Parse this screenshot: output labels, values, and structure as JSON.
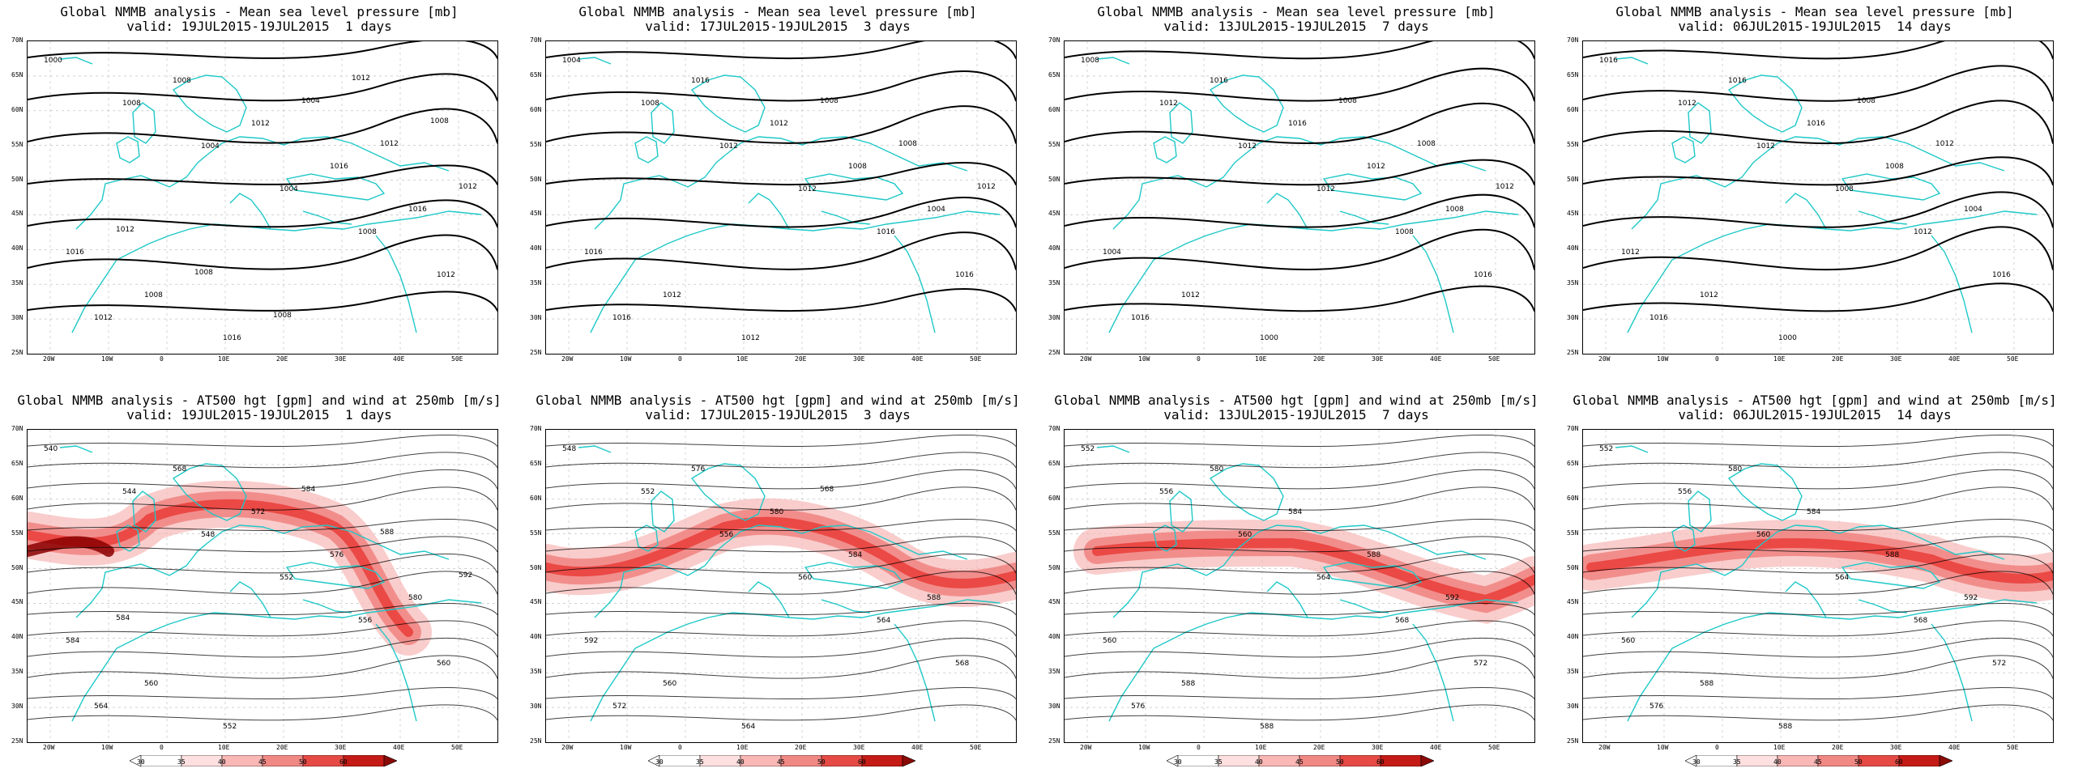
{
  "colors": {
    "coast": "#1fc8c8",
    "contour": "#000000",
    "jet": "#e8312e",
    "grid": "#b8b8b8"
  },
  "top_row": [
    {
      "title": "Global NMMB analysis - Mean sea level pressure [mb]",
      "valid": "valid: 19JUL2015-19JUL2015  1 days"
    },
    {
      "title": "Global NMMB analysis - Mean sea level pressure [mb]",
      "valid": "valid: 17JUL2015-19JUL2015  3 days"
    },
    {
      "title": "Global NMMB analysis - Mean sea level pressure [mb]",
      "valid": "valid: 13JUL2015-19JUL2015  7 days"
    },
    {
      "title": "Global NMMB analysis - Mean sea level pressure [mb]",
      "valid": "valid: 06JUL2015-19JUL2015  14 days"
    }
  ],
  "bottom_row": [
    {
      "title": "Global NMMB analysis - AT500 hgt [gpm] and wind at 250mb [m/s]",
      "valid": "valid: 19JUL2015-19JUL2015  1 days"
    },
    {
      "title": "Global NMMB analysis - AT500 hgt [gpm] and wind at 250mb [m/s]",
      "valid": "valid: 17JUL2015-19JUL2015  3 days"
    },
    {
      "title": "Global NMMB analysis - AT500 hgt [gpm] and wind at 250mb [m/s]",
      "valid": "valid: 13JUL2015-19JUL2015  7 days"
    },
    {
      "title": "Global NMMB analysis - AT500 hgt [gpm] and wind at 250mb [m/s]",
      "valid": "valid: 06JUL2015-19JUL2015  14 days"
    }
  ],
  "lat_labels": [
    "70N",
    "65N",
    "60N",
    "55N",
    "50N",
    "45N",
    "40N",
    "35N",
    "30N",
    "25N"
  ],
  "lon_labels": [
    "20W",
    "10W",
    "0",
    "10E",
    "20E",
    "30E",
    "40E",
    "50E"
  ],
  "colorbar_labels": [
    "30",
    "35",
    "40",
    "45",
    "50",
    "60"
  ],
  "mslp_labels": [
    [
      "1000",
      "1008",
      "1004",
      "1004",
      "1008",
      "1012",
      "1012",
      "1008",
      "1012",
      "1016",
      "1016",
      "1016",
      "1008",
      "1016",
      "1004",
      "1012",
      "1012",
      "1012",
      "1008",
      "1008",
      "1012",
      "1008"
    ],
    [
      "1004",
      "1008",
      "1012",
      "1012",
      "1016",
      "1016",
      "1016",
      "1016",
      "1012",
      "1008",
      "1004",
      "1016",
      "1012",
      "1012",
      "1008",
      "1008",
      "1012"
    ],
    [
      "1008",
      "1012",
      "1012",
      "1012",
      "1008",
      "1016",
      "1016",
      "1016",
      "1016",
      "1012",
      "1008",
      "1004",
      "1012",
      "1000",
      "1008",
      "1008",
      "1012"
    ],
    [
      "1016",
      "1012",
      "1012",
      "1008",
      "1012",
      "1016",
      "1016",
      "1016",
      "1016",
      "1008",
      "1004",
      "1012",
      "1012",
      "1000",
      "1008",
      "1012"
    ]
  ],
  "z500_labels": [
    [
      "540",
      "544",
      "548",
      "552",
      "556",
      "560",
      "564",
      "568",
      "572",
      "576",
      "580",
      "584",
      "560",
      "552",
      "584",
      "588",
      "592",
      "584"
    ],
    [
      "548",
      "552",
      "556",
      "560",
      "564",
      "568",
      "572",
      "576",
      "580",
      "584",
      "588",
      "592",
      "560",
      "564",
      "568"
    ],
    [
      "552",
      "556",
      "560",
      "564",
      "568",
      "572",
      "576",
      "580",
      "584",
      "588",
      "592",
      "560",
      "588",
      "588"
    ],
    [
      "552",
      "556",
      "560",
      "564",
      "568",
      "572",
      "576",
      "580",
      "584",
      "588",
      "592",
      "560",
      "588",
      "588"
    ]
  ]
}
